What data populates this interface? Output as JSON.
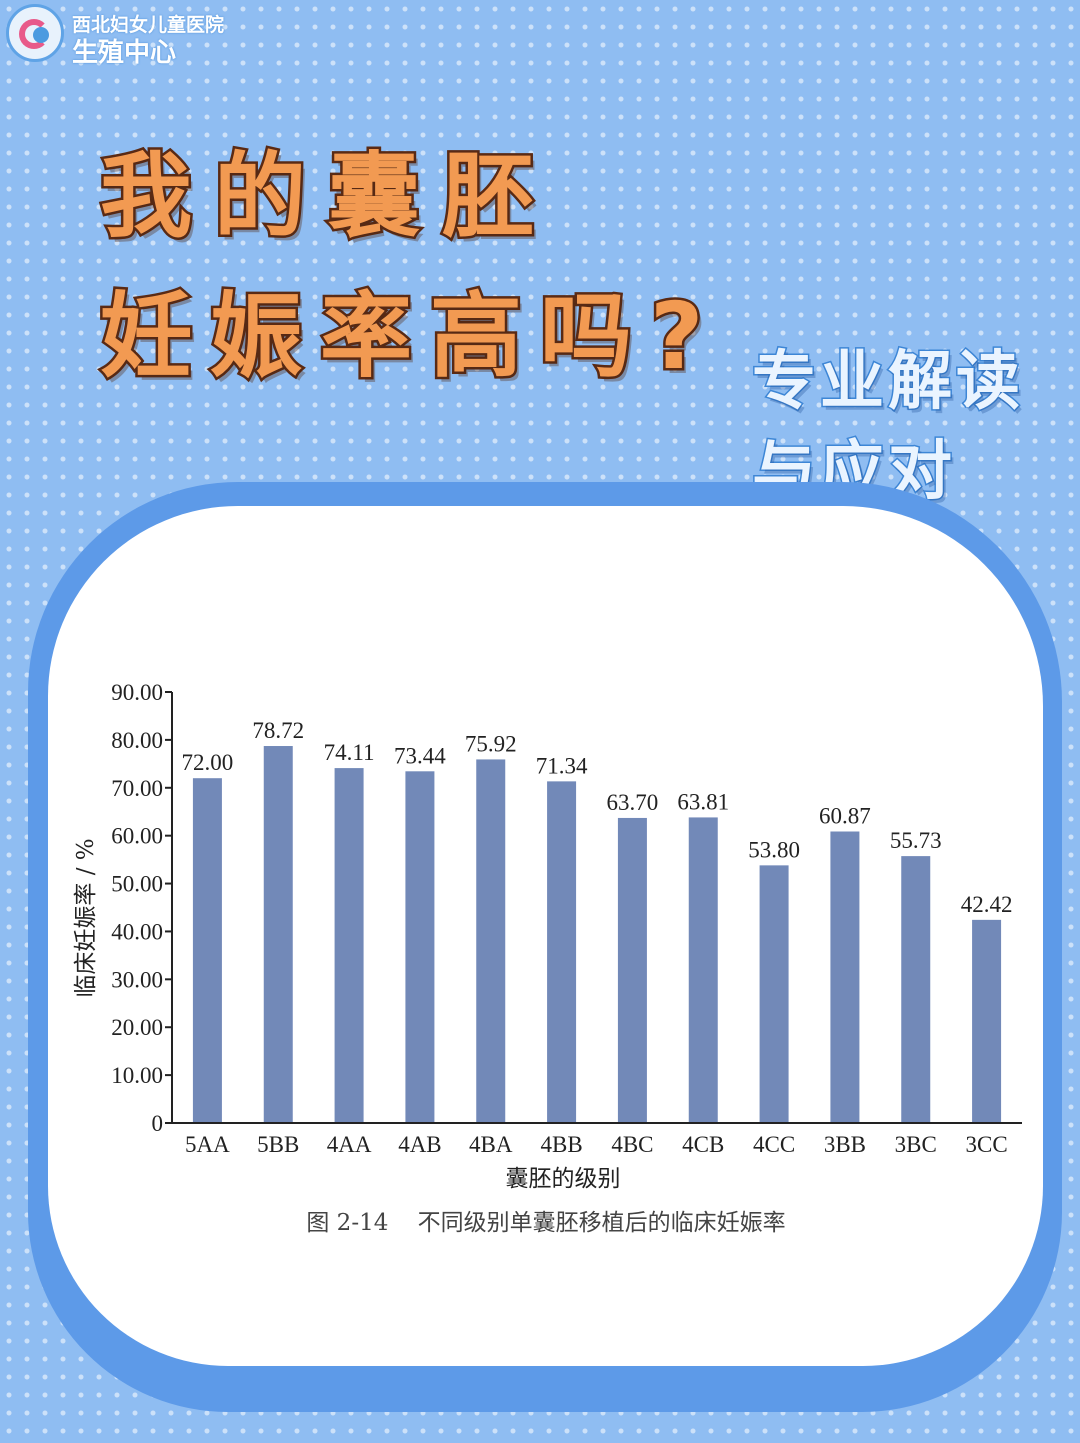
{
  "logo": {
    "line1": "西北妇女儿童医院",
    "line2": "生殖中心"
  },
  "title": {
    "line1": "我的囊胚",
    "line2": "妊娠率高吗?"
  },
  "subtitle": {
    "line1": "专业解读",
    "line2": "与应对"
  },
  "colors": {
    "background": "#8fbdf2",
    "title_fill": "#f29a52",
    "title_outline": "#5a2a14",
    "card_frame": "#5d9ae8",
    "bar": "#7289b8"
  },
  "chart_data": {
    "type": "bar",
    "categories": [
      "5AA",
      "5BB",
      "4AA",
      "4AB",
      "4BA",
      "4BB",
      "4BC",
      "4CB",
      "4CC",
      "3BB",
      "3BC",
      "3CC"
    ],
    "values": [
      72.0,
      78.72,
      74.11,
      73.44,
      75.92,
      71.34,
      63.7,
      63.81,
      53.8,
      60.87,
      55.73,
      42.42
    ],
    "value_labels": [
      "72.00",
      "78.72",
      "74.11",
      "73.44",
      "75.92",
      "71.34",
      "63.70",
      "63.81",
      "53.80",
      "60.87",
      "55.73",
      "42.42"
    ],
    "y_ticks": [
      "0",
      "10.00",
      "20.00",
      "30.00",
      "40.00",
      "50.00",
      "60.00",
      "70.00",
      "80.00",
      "90.00"
    ],
    "ylim": [
      0,
      90
    ],
    "xlabel": "囊胚的级别",
    "ylabel": "临床妊娠率 / %",
    "caption": "图 2-14    不同级别单囊胚移植后的临床妊娠率",
    "grid": false,
    "legend": "none"
  }
}
